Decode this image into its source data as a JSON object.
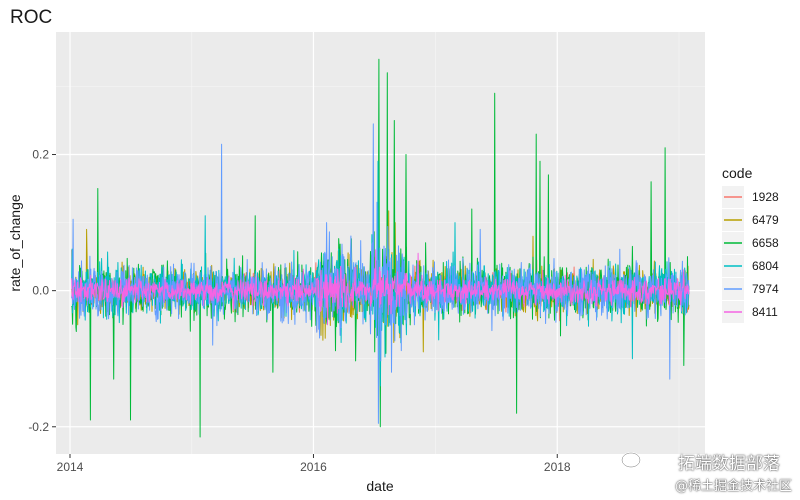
{
  "chart_data": {
    "type": "line",
    "title": "ROC",
    "xlabel": "date",
    "ylabel": "rate_of_change",
    "xlim": [
      "2013-11-20",
      "2019-03-20"
    ],
    "ylim": [
      -0.24,
      0.38
    ],
    "x_ticks": [
      {
        "label": "2014",
        "date": "2014-01-01"
      },
      {
        "label": "2016",
        "date": "2016-01-01"
      },
      {
        "label": "2018",
        "date": "2018-01-01"
      }
    ],
    "y_ticks": [
      {
        "label": "-0.2",
        "value": -0.2
      },
      {
        "label": "0.0",
        "value": 0.0
      },
      {
        "label": "0.2",
        "value": 0.2
      }
    ],
    "grid": true,
    "legend": {
      "title": "code",
      "placement": "right"
    },
    "date_range": [
      "2014-01-06",
      "2019-01-31"
    ],
    "series": [
      {
        "name": "1928",
        "color": "#F8766D",
        "sigma": 0.011,
        "spikes": [
          [
            "2014-01-06",
            0.06
          ],
          [
            "2016-03-18",
            -0.04
          ],
          [
            "2016-08-05",
            0.05
          ],
          [
            "2017-11-01",
            0.045
          ]
        ]
      },
      {
        "name": "6479",
        "color": "#B79F00",
        "sigma": 0.016,
        "spikes": [
          [
            "2014-02-20",
            0.09
          ],
          [
            "2016-02-05",
            -0.07
          ],
          [
            "2016-09-02",
            0.1
          ],
          [
            "2016-11-25",
            -0.09
          ],
          [
            "2017-10-20",
            0.08
          ]
        ]
      },
      {
        "name": "6658",
        "color": "#00BA38",
        "sigma": 0.02,
        "spikes": [
          [
            "2014-01-20",
            -0.06
          ],
          [
            "2014-03-03",
            -0.19
          ],
          [
            "2014-03-25",
            0.15
          ],
          [
            "2014-05-12",
            -0.13
          ],
          [
            "2014-07-02",
            -0.19
          ],
          [
            "2015-01-26",
            -0.215
          ],
          [
            "2015-07-10",
            0.11
          ],
          [
            "2015-09-01",
            -0.12
          ],
          [
            "2016-07-15",
            0.34
          ],
          [
            "2016-07-19",
            -0.2
          ],
          [
            "2016-08-10",
            0.32
          ],
          [
            "2016-08-30",
            0.25
          ],
          [
            "2016-10-05",
            0.2
          ],
          [
            "2017-04-20",
            0.12
          ],
          [
            "2017-06-28",
            0.29
          ],
          [
            "2017-09-01",
            -0.18
          ],
          [
            "2017-10-30",
            0.23
          ],
          [
            "2017-11-10",
            0.19
          ],
          [
            "2017-12-05",
            0.17
          ],
          [
            "2018-10-10",
            0.16
          ],
          [
            "2018-11-20",
            0.21
          ],
          [
            "2019-01-15",
            -0.11
          ]
        ]
      },
      {
        "name": "6804",
        "color": "#00BFC4",
        "sigma": 0.018,
        "spikes": [
          [
            "2015-02-10",
            0.11
          ],
          [
            "2016-07-12",
            0.19
          ],
          [
            "2016-07-20",
            -0.14
          ],
          [
            "2017-03-01",
            0.1
          ],
          [
            "2018-08-15",
            -0.1
          ]
        ]
      },
      {
        "name": "7974",
        "color": "#619CFF",
        "sigma": 0.02,
        "spikes": [
          [
            "2014-01-10",
            0.105
          ],
          [
            "2015-04-01",
            0.215
          ],
          [
            "2015-03-05",
            -0.08
          ],
          [
            "2016-02-10",
            0.1
          ],
          [
            "2016-06-28",
            0.245
          ],
          [
            "2016-07-14",
            -0.195
          ],
          [
            "2016-07-10",
            0.13
          ],
          [
            "2016-08-22",
            -0.12
          ],
          [
            "2017-05-15",
            0.09
          ],
          [
            "2018-12-05",
            -0.13
          ]
        ]
      },
      {
        "name": "8411",
        "color": "#F564E3",
        "sigma": 0.009,
        "spikes": [
          [
            "2016-07-05",
            0.06
          ],
          [
            "2016-11-10",
            0.055
          ],
          [
            "2016-02-12",
            -0.05
          ]
        ]
      }
    ]
  },
  "watermark": {
    "title": "拓端数据部落",
    "subtitle": "@稀土掘金技术社区"
  }
}
